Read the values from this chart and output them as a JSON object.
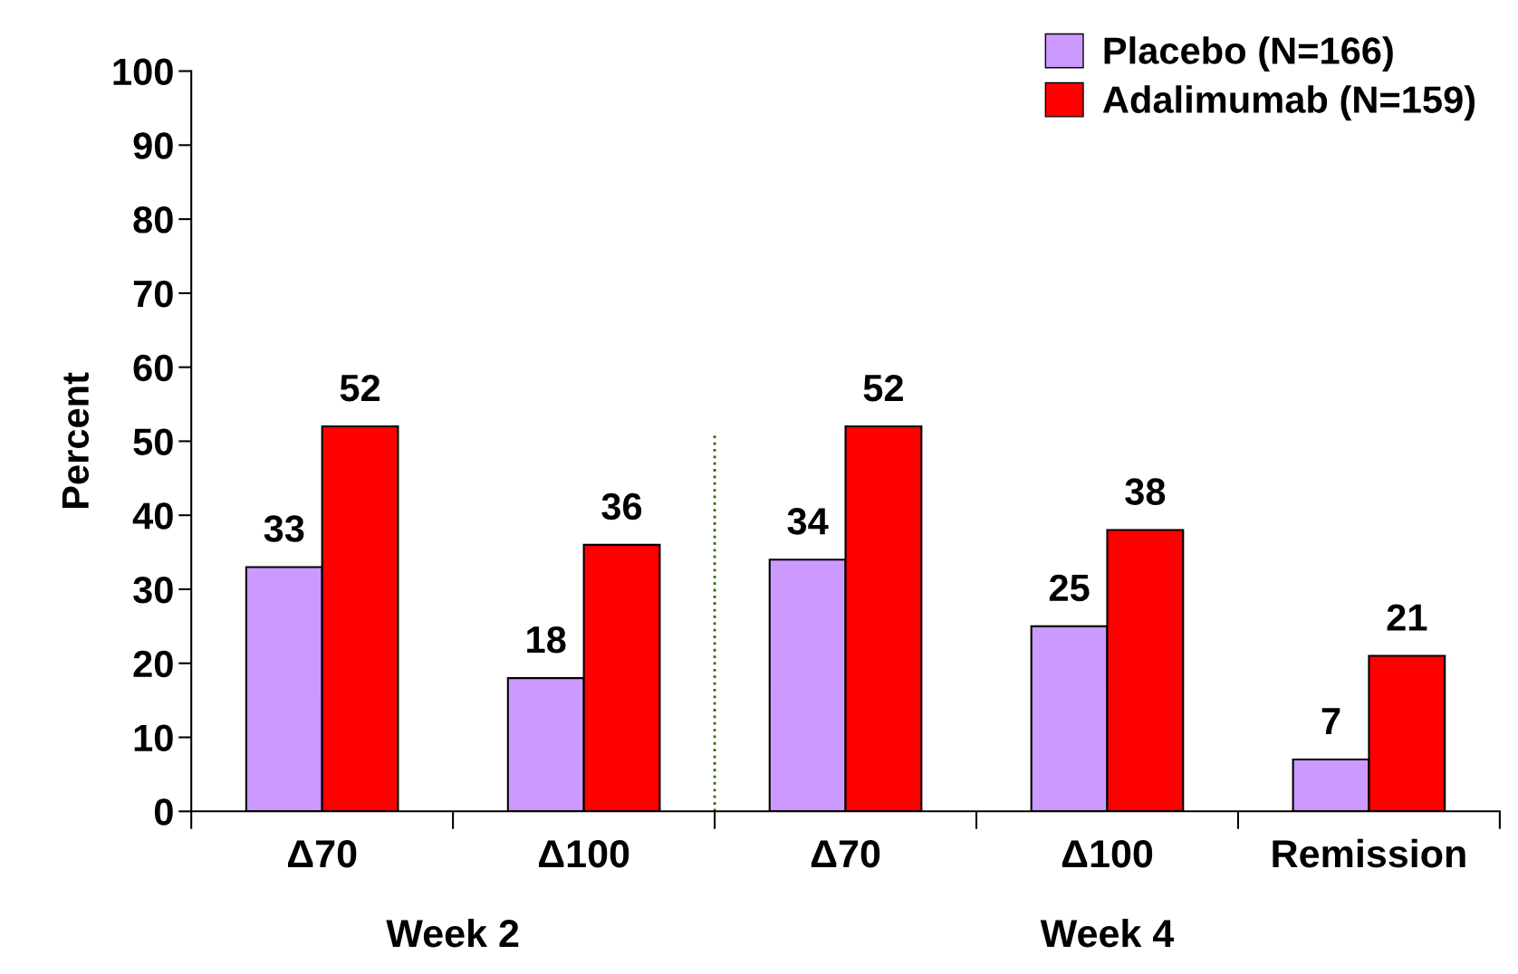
{
  "chart_data": {
    "type": "bar",
    "ylabel": "Percent",
    "categories": [
      "Δ70",
      "Δ100",
      "Δ70",
      "Δ100",
      "Remission"
    ],
    "series": [
      {
        "name": "Placebo (N=166)",
        "color": "#cc99ff",
        "values": [
          33,
          18,
          34,
          25,
          7
        ]
      },
      {
        "name": "Adalimumab (N=159)",
        "color": "#ff0000",
        "values": [
          52,
          36,
          52,
          38,
          21
        ]
      }
    ],
    "ylim": [
      0,
      100
    ],
    "yticks": [
      0,
      10,
      20,
      30,
      40,
      50,
      60,
      70,
      80,
      90,
      100
    ],
    "data_labels": true,
    "grid": false,
    "legend": "top right",
    "annotations": [
      "Week 2",
      "Week 4"
    ]
  }
}
